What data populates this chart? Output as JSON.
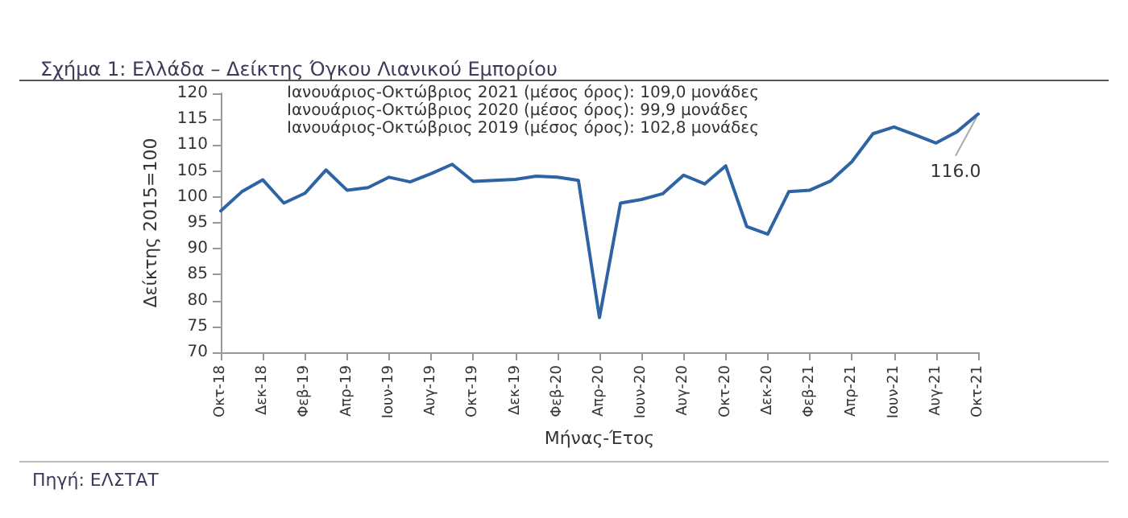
{
  "chart_data": {
    "type": "line",
    "title": "Σχήμα 1: Ελλάδα – Δείκτης Όγκου Λιανικού Εμπορίου",
    "xlabel": "Μήνας-Έτος",
    "ylabel": "Δείκτης 2015=100",
    "categories": [
      "Οκτ-18",
      null,
      "Δεκ-18",
      null,
      "Φεβ-19",
      null,
      "Απρ-19",
      null,
      "Ιουν-19",
      null,
      "Αυγ-19",
      null,
      "Οκτ-19",
      null,
      "Δεκ-19",
      null,
      "Φεβ-20",
      null,
      "Απρ-20",
      null,
      "Ιουν-20",
      null,
      "Αυγ-20",
      null,
      "Οκτ-20",
      null,
      "Δεκ-20",
      null,
      "Φεβ-21",
      null,
      "Απρ-21",
      null,
      "Ιουν-21",
      null,
      "Αυγ-21",
      null,
      "Οκτ-21"
    ],
    "series": [
      {
        "color": "#2e64a4",
        "values": [
          97.3,
          101.0,
          103.3,
          98.8,
          100.7,
          105.2,
          101.3,
          101.8,
          103.8,
          102.9,
          104.5,
          106.3,
          103.0,
          103.2,
          103.4,
          104.0,
          103.8,
          103.2,
          76.7,
          98.8,
          99.5,
          100.6,
          104.2,
          102.5,
          106.0,
          94.3,
          92.8,
          101.0,
          101.3,
          103.1,
          106.8,
          112.2,
          113.5,
          112.0,
          110.4,
          112.6,
          116.0
        ]
      }
    ],
    "ylim": [
      70,
      120
    ],
    "yticks": [
      70,
      75,
      80,
      85,
      90,
      95,
      100,
      105,
      110,
      115,
      120
    ],
    "grid": false,
    "marker": "none",
    "line_style": "solid",
    "annotations": [
      "Ιανουάριος-Οκτώβριος 2021 (μέσος όρος): 109,0 μονάδες",
      "Ιανουάριος-Οκτώβριος 2020 (μέσος όρος): 99,9 μονάδες",
      "Ιανουάριος-Οκτώβριος 2019 (μέσος όρος): 102,8 μονάδες",
      {
        "text": "116.0",
        "x": "Οκτ-21",
        "y": 116
      },
      "Πηγή: ΕΛΣΤΑΤ"
    ]
  }
}
